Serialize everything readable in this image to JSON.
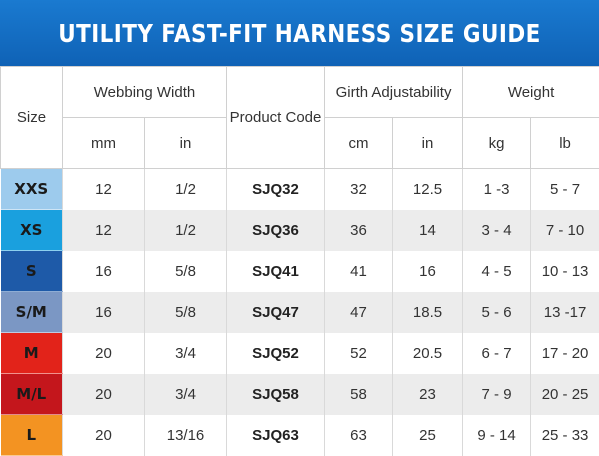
{
  "title": "UTILITY FAST-FIT HARNESS SIZE GUIDE",
  "headers": {
    "size": "Size",
    "webbing_width": "Webbing Width",
    "product_code": "Product Code",
    "girth_adjustability": "Girth Adjustability",
    "weight": "Weight",
    "mm": "mm",
    "in": "in",
    "cm": "cm",
    "in2": "in",
    "kg": "kg",
    "lb": "lb"
  },
  "rows": [
    {
      "size": "XXS",
      "color": "#9dcbed",
      "mm": "12",
      "in": "1/2",
      "code": "SJQ32",
      "cm": "32",
      "girth_in": "12.5",
      "kg": "1 -3",
      "lb": "5 - 7"
    },
    {
      "size": "XS",
      "color": "#1aa0de",
      "mm": "12",
      "in": "1/2",
      "code": "SJQ36",
      "cm": "36",
      "girth_in": "14",
      "kg": "3 - 4",
      "lb": "7 - 10"
    },
    {
      "size": "S",
      "color": "#1e5aa8",
      "mm": "16",
      "in": "5/8",
      "code": "SJQ41",
      "cm": "41",
      "girth_in": "16",
      "kg": "4 - 5",
      "lb": "10 - 13"
    },
    {
      "size": "S/M",
      "color": "#7b97c4",
      "mm": "16",
      "in": "5/8",
      "code": "SJQ47",
      "cm": "47",
      "girth_in": "18.5",
      "kg": "5 - 6",
      "lb": "13 -17"
    },
    {
      "size": "M",
      "color": "#e2231a",
      "mm": "20",
      "in": "3/4",
      "code": "SJQ52",
      "cm": "52",
      "girth_in": "20.5",
      "kg": "6 - 7",
      "lb": "17 - 20"
    },
    {
      "size": "M/L",
      "color": "#c4161c",
      "mm": "20",
      "in": "3/4",
      "code": "SJQ58",
      "cm": "58",
      "girth_in": "23",
      "kg": "7 - 9",
      "lb": "20 - 25"
    },
    {
      "size": "L",
      "color": "#f39322",
      "mm": "20",
      "in": "13/16",
      "code": "SJQ63",
      "cm": "63",
      "girth_in": "25",
      "kg": "9 - 14",
      "lb": "25 - 33"
    }
  ]
}
